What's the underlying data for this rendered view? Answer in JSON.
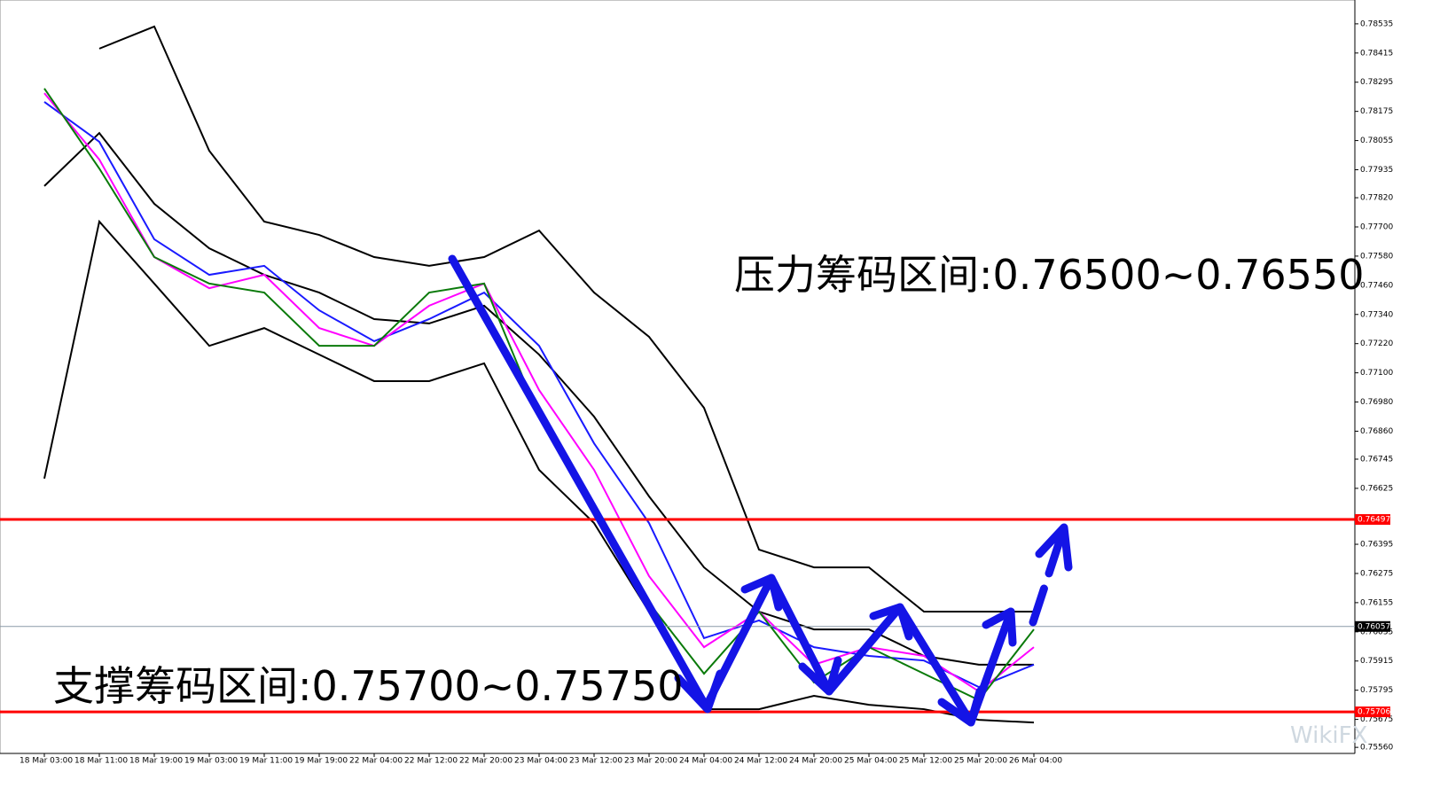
{
  "chart_data": {
    "type": "line",
    "categories": [
      "18 Mar 03:00",
      "18 Mar 11:00",
      "18 Mar 19:00",
      "19 Mar 03:00",
      "19 Mar 11:00",
      "19 Mar 19:00",
      "22 Mar 04:00",
      "22 Mar 12:00",
      "22 Mar 20:00",
      "23 Mar 04:00",
      "23 Mar 12:00",
      "23 Mar 20:00",
      "24 Mar 04:00",
      "24 Mar 12:00",
      "24 Mar 20:00",
      "25 Mar 04:00",
      "25 Mar 12:00",
      "25 Mar 20:00",
      "26 Mar 04:00"
    ],
    "series": [
      {
        "color": "#000000",
        "values": [
          null,
          0.78433,
          0.78524,
          0.78013,
          0.77722,
          0.77667,
          0.77576,
          0.7754,
          0.77576,
          0.77685,
          0.7743,
          0.77248,
          0.76956,
          0.76373,
          0.763,
          0.763,
          0.76118,
          0.76118,
          0.76118
        ]
      },
      {
        "color": "#000000",
        "values": [
          0.77868,
          0.78086,
          0.77795,
          0.77612,
          0.77503,
          0.7743,
          0.77321,
          0.77303,
          0.77376,
          0.77175,
          0.7692,
          0.76592,
          0.763,
          0.76118,
          0.76045,
          0.76045,
          0.75936,
          0.759,
          0.759
        ]
      },
      {
        "color": "#000000",
        "values": [
          0.76665,
          0.77722,
          0.77467,
          0.77211,
          0.77284,
          0.77175,
          0.77066,
          0.77066,
          0.77139,
          0.76701,
          0.76482,
          0.76118,
          0.75717,
          0.75717,
          0.75772,
          0.75735,
          0.75717,
          0.75673,
          0.75662
        ]
      },
      {
        "color": "#1a1aff",
        "values": [
          0.78214,
          0.7805,
          0.77649,
          0.77503,
          0.7754,
          0.77357,
          0.7723,
          0.77321,
          0.7743,
          0.77211,
          0.7681,
          0.76482,
          0.76009,
          0.76082,
          0.75972,
          0.75936,
          0.75917,
          0.75808,
          0.759
        ]
      },
      {
        "color": "#ff00ff",
        "values": [
          0.7825,
          0.77977,
          0.77576,
          0.77448,
          0.77503,
          0.77284,
          0.77211,
          0.77376,
          0.77467,
          0.77029,
          0.76701,
          0.76264,
          0.75972,
          0.76118,
          0.759,
          0.75972,
          0.75936,
          0.7579,
          0.75972
        ]
      },
      {
        "color": "#0a7a0a",
        "values": [
          0.78269,
          0.7794,
          0.77576,
          0.77467,
          0.7743,
          0.77211,
          0.77211,
          0.7743,
          0.77467,
          0.7692,
          0.76519,
          0.76154,
          0.75863,
          0.76118,
          0.75827,
          0.75972,
          0.75863,
          0.75754,
          0.76045
        ]
      }
    ],
    "ylim": [
      0.75535,
      0.78633
    ],
    "yticks": [
      0.78535,
      0.78415,
      0.78295,
      0.78175,
      0.78055,
      0.77935,
      {
        "value": 0.7782,
        "label": "0.77820"
      },
      {
        "value": 0.777,
        "label": "0.77700"
      },
      {
        "value": 0.7758,
        "label": "0.77580"
      },
      {
        "value": 0.7746,
        "label": "0.77460"
      },
      {
        "value": 0.7734,
        "label": "0.77340"
      },
      {
        "value": 0.7722,
        "label": "0.77220"
      },
      {
        "value": 0.771,
        "label": "0.77100"
      },
      {
        "value": 0.7698,
        "label": "0.76980"
      },
      {
        "value": 0.7686,
        "label": "0.76860"
      },
      0.76745,
      0.76625,
      0.76395,
      0.76275,
      0.76155,
      0.76035,
      0.75915,
      0.75795,
      0.75675,
      {
        "value": 0.7556,
        "label": "0.75560"
      }
    ],
    "hlines": [
      {
        "value": 0.76497,
        "color": "#ff0000"
      },
      {
        "value": 0.75706,
        "color": "#ff0000"
      },
      {
        "value": 0.76057,
        "color": "#8a9aa8"
      }
    ],
    "annotations": [
      "压力筹码区间:0.76500~0.76550",
      "支撑筹码区间:0.75700~0.75750"
    ],
    "watermark": "WikiFX"
  }
}
